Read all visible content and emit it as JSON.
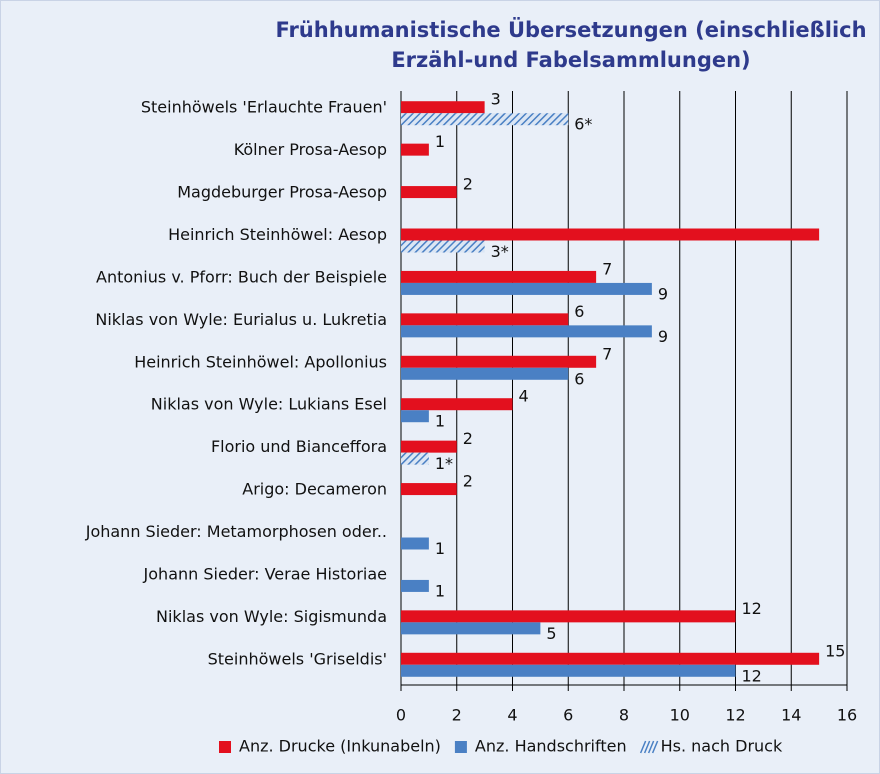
{
  "chart_data": {
    "type": "hbar",
    "title": "Frühhumanistische Übersetzungen (einschließlich Erzähl-und Fabelsammlungen)",
    "categories": [
      "Steinhöwels 'Erlauchte Frauen'",
      "Kölner Prosa-Aesop",
      "Magdeburger Prosa-Aesop",
      "Heinrich Steinhöwel: Aesop",
      "Antonius v. Pforr: Buch der Beispiele",
      "Niklas von Wyle: Eurialus u. Lukretia",
      "Heinrich Steinhöwel: Apollonius",
      "Niklas von Wyle: Lukians Esel",
      "Florio und Bianceffora",
      "Arigo: Decameron",
      "Johann Sieder: Metamorphosen oder..",
      "Johann Sieder: Verae Historiae",
      "Niklas von Wyle: Sigismunda",
      "Steinhöwels 'Griseldis'"
    ],
    "series": [
      {
        "name": "Anz. Drucke (Inkunabeln)",
        "color": "#e3101e",
        "slot": "upper",
        "values": [
          3,
          1,
          2,
          15,
          7,
          6,
          7,
          4,
          2,
          2,
          null,
          null,
          12,
          15
        ],
        "value_labels": [
          "3",
          "1",
          "2",
          null,
          "7",
          "6",
          "7",
          "4",
          "2",
          "2",
          null,
          null,
          "12",
          "15"
        ]
      },
      {
        "name": "Anz. Handschriften",
        "color": "#4a80c4",
        "slot": "lower",
        "values": [
          null,
          null,
          null,
          null,
          9,
          9,
          6,
          1,
          null,
          null,
          1,
          1,
          5,
          12
        ],
        "value_labels": [
          null,
          null,
          null,
          null,
          "9",
          "9",
          "6",
          "1",
          null,
          null,
          "1",
          "1",
          "5",
          "12"
        ]
      },
      {
        "name": "Hs. nach Druck",
        "color": "#4a80c4",
        "slot": "lower",
        "hatch": true,
        "values": [
          6,
          null,
          null,
          3,
          null,
          null,
          null,
          null,
          1,
          null,
          null,
          null,
          null,
          null
        ],
        "value_labels": [
          "6*",
          null,
          null,
          "3*",
          null,
          null,
          null,
          null,
          "1*",
          null,
          null,
          null,
          null,
          null
        ]
      }
    ],
    "xlim": [
      0,
      16
    ],
    "xticks": [
      0,
      2,
      4,
      6,
      8,
      10,
      12,
      14,
      16
    ],
    "grid": true,
    "legend": "bottom"
  }
}
